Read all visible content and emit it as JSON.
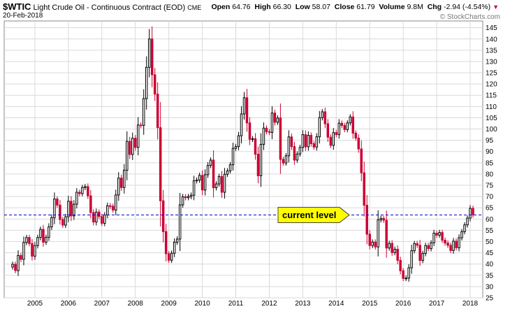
{
  "header": {
    "symbol": "$WTIC",
    "name": "Light Crude Oil - Continuous Contract (EOD)",
    "exchange": "CME",
    "date": "20-Feb-2018",
    "open_label": "Open",
    "open": "64.76",
    "high_label": "High",
    "high": "66.30",
    "low_label": "Low",
    "low": "58.07",
    "close_label": "Close",
    "close": "61.79",
    "volume_label": "Volume",
    "volume": "9.8M",
    "chg_label": "Chg",
    "chg": "-2.94 (-4.54%)",
    "brand": "© StockCharts.com"
  },
  "colors": {
    "up": "#000000",
    "down": "#cc0033",
    "level_line": "#0000cc",
    "callout": "#ffff00",
    "grid": "#d9d9d9"
  },
  "chart_data": {
    "type": "candlestick",
    "interval": "monthly",
    "x": [
      "2004-05",
      "2004-06",
      "2004-07",
      "2004-08",
      "2004-09",
      "2004-10",
      "2004-11",
      "2004-12",
      "2005-01",
      "2005-02",
      "2005-03",
      "2005-04",
      "2005-05",
      "2005-06",
      "2005-07",
      "2005-08",
      "2005-09",
      "2005-10",
      "2005-11",
      "2005-12",
      "2006-01",
      "2006-02",
      "2006-03",
      "2006-04",
      "2006-05",
      "2006-06",
      "2006-07",
      "2006-08",
      "2006-09",
      "2006-10",
      "2006-11",
      "2006-12",
      "2007-01",
      "2007-02",
      "2007-03",
      "2007-04",
      "2007-05",
      "2007-06",
      "2007-07",
      "2007-08",
      "2007-09",
      "2007-10",
      "2007-11",
      "2007-12",
      "2008-01",
      "2008-02",
      "2008-03",
      "2008-04",
      "2008-05",
      "2008-06",
      "2008-07",
      "2008-08",
      "2008-09",
      "2008-10",
      "2008-11",
      "2008-12",
      "2009-01",
      "2009-02",
      "2009-03",
      "2009-04",
      "2009-05",
      "2009-06",
      "2009-07",
      "2009-08",
      "2009-09",
      "2009-10",
      "2009-11",
      "2009-12",
      "2010-01",
      "2010-02",
      "2010-03",
      "2010-04",
      "2010-05",
      "2010-06",
      "2010-07",
      "2010-08",
      "2010-09",
      "2010-10",
      "2010-11",
      "2010-12",
      "2011-01",
      "2011-02",
      "2011-03",
      "2011-04",
      "2011-05",
      "2011-06",
      "2011-07",
      "2011-08",
      "2011-09",
      "2011-10",
      "2011-11",
      "2011-12",
      "2012-01",
      "2012-02",
      "2012-03",
      "2012-04",
      "2012-05",
      "2012-06",
      "2012-07",
      "2012-08",
      "2012-09",
      "2012-10",
      "2012-11",
      "2012-12",
      "2013-01",
      "2013-02",
      "2013-03",
      "2013-04",
      "2013-05",
      "2013-06",
      "2013-07",
      "2013-08",
      "2013-09",
      "2013-10",
      "2013-11",
      "2013-12",
      "2014-01",
      "2014-02",
      "2014-03",
      "2014-04",
      "2014-05",
      "2014-06",
      "2014-07",
      "2014-08",
      "2014-09",
      "2014-10",
      "2014-11",
      "2014-12",
      "2015-01",
      "2015-02",
      "2015-03",
      "2015-04",
      "2015-05",
      "2015-06",
      "2015-07",
      "2015-08",
      "2015-09",
      "2015-10",
      "2015-11",
      "2015-12",
      "2016-01",
      "2016-02",
      "2016-03",
      "2016-04",
      "2016-05",
      "2016-06",
      "2016-07",
      "2016-08",
      "2016-09",
      "2016-10",
      "2016-11",
      "2016-12",
      "2017-01",
      "2017-02",
      "2017-03",
      "2017-04",
      "2017-05",
      "2017-06",
      "2017-07",
      "2017-08",
      "2017-09",
      "2017-10",
      "2017-11",
      "2017-12",
      "2018-01",
      "2018-02"
    ],
    "close": [
      39.9,
      37.1,
      43.8,
      42.1,
      49.6,
      51.8,
      49.1,
      43.5,
      48.2,
      51.8,
      55.4,
      49.7,
      51.9,
      56.5,
      60.6,
      68.9,
      66.2,
      59.8,
      57.3,
      61.0,
      67.9,
      61.4,
      66.6,
      71.9,
      71.3,
      74.0,
      74.4,
      70.3,
      62.9,
      58.7,
      63.1,
      61.1,
      58.1,
      61.8,
      65.9,
      65.7,
      64.0,
      70.7,
      78.2,
      74.0,
      81.7,
      94.5,
      88.7,
      95.9,
      91.8,
      101.8,
      101.6,
      113.5,
      127.4,
      140.0,
      124.1,
      115.5,
      100.6,
      68.1,
      54.4,
      44.6,
      41.7,
      44.8,
      49.7,
      51.1,
      66.3,
      69.9,
      69.5,
      70.0,
      70.6,
      77.0,
      77.3,
      79.4,
      72.9,
      79.7,
      83.8,
      86.2,
      73.9,
      75.6,
      78.9,
      71.9,
      79.9,
      81.4,
      84.1,
      91.4,
      92.2,
      97.0,
      106.7,
      113.9,
      102.7,
      95.4,
      95.7,
      88.8,
      79.2,
      93.2,
      100.4,
      98.8,
      98.5,
      107.1,
      103.0,
      104.9,
      86.5,
      84.9,
      88.1,
      96.5,
      92.2,
      86.2,
      88.9,
      91.8,
      97.5,
      92.1,
      97.2,
      93.5,
      91.97,
      96.56,
      105.03,
      107.65,
      102.33,
      96.38,
      92.72,
      98.42,
      97.49,
      102.59,
      101.58,
      99.74,
      102.71,
      105.37,
      98.17,
      95.96,
      91.16,
      80.54,
      66.15,
      53.27,
      48.24,
      49.76,
      47.6,
      59.63,
      60.3,
      59.47,
      47.12,
      49.2,
      45.09,
      46.59,
      41.65,
      37.04,
      33.62,
      33.75,
      38.34,
      45.92,
      49.1,
      48.33,
      41.6,
      44.7,
      48.24,
      46.86,
      49.44,
      53.72,
      52.81,
      54.01,
      50.6,
      49.33,
      48.32,
      46.04,
      50.17,
      47.23,
      51.67,
      54.38,
      57.4,
      60.42,
      64.73,
      61.79
    ],
    "ylim": [
      25,
      148
    ],
    "y_ticks": [
      25,
      30,
      35,
      40,
      45,
      50,
      55,
      60,
      65,
      70,
      75,
      80,
      85,
      90,
      95,
      100,
      105,
      110,
      115,
      120,
      125,
      130,
      135,
      140,
      145
    ],
    "x_tick_labels": [
      "2005",
      "2006",
      "2007",
      "2008",
      "2009",
      "2010",
      "2011",
      "2012",
      "2013",
      "2014",
      "2015",
      "2016",
      "2017",
      "2018"
    ],
    "reference_level": 61.79,
    "annotation": "current level",
    "grid": true
  }
}
